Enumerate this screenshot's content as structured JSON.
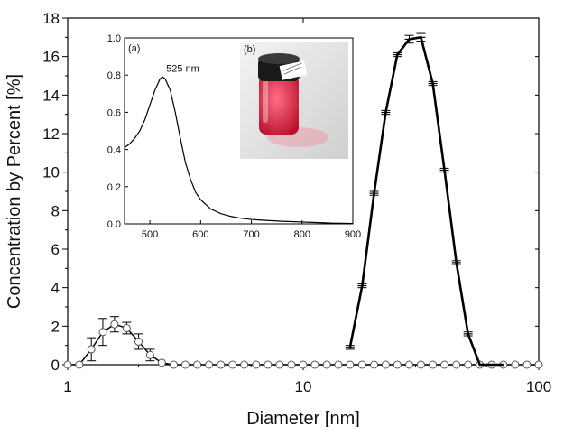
{
  "chart_data": [
    {
      "type": "scatter",
      "title": "",
      "xlabel": "Diameter [nm]",
      "ylabel": "Concentration by Percent [%]",
      "x_scale": "log",
      "xlim": [
        1,
        100
      ],
      "ylim": [
        0,
        18
      ],
      "x_ticks": [
        1,
        10,
        100
      ],
      "x_tick_labels": [
        "1",
        "10",
        "100"
      ],
      "y_ticks": [
        0,
        2,
        4,
        6,
        8,
        10,
        12,
        14,
        16,
        18
      ],
      "y_tick_labels": [
        "0",
        "2",
        "4",
        "6",
        "8",
        "10",
        "12",
        "14",
        "16",
        "18"
      ],
      "grid": false,
      "series": [
        {
          "marker": "open-circle",
          "color": "#000000",
          "x": [
            1.0,
            1.12,
            1.26,
            1.41,
            1.58,
            1.78,
            2.0,
            2.24,
            2.51,
            2.82,
            3.16,
            3.55,
            3.98,
            4.47,
            5.01,
            5.62,
            6.31,
            7.08,
            7.94,
            8.91,
            10.0,
            11.2,
            12.6,
            14.1,
            15.8,
            17.8,
            20.0,
            22.4,
            25.1,
            28.2,
            31.6,
            35.5,
            39.8,
            44.7,
            50.1,
            56.2,
            63.1,
            70.8,
            79.4,
            89.1,
            100.0
          ],
          "y": [
            0,
            0,
            0.8,
            1.7,
            2.1,
            1.9,
            1.2,
            0.5,
            0.1,
            0,
            0,
            0,
            0,
            0,
            0,
            0,
            0,
            0,
            0,
            0,
            0,
            0,
            0,
            0,
            0,
            0,
            0,
            0,
            0,
            0,
            0,
            0,
            0,
            0,
            0,
            0,
            0,
            0,
            0,
            0,
            0
          ]
        },
        {
          "marker": "bar-with-error",
          "color": "#000000",
          "x": [
            15.8,
            17.8,
            20.0,
            22.4,
            25.1,
            28.2,
            31.6,
            35.5,
            39.8,
            44.7,
            50.1,
            56.2,
            63.1,
            70.8
          ],
          "y": [
            0.9,
            4.1,
            8.9,
            13.1,
            16.1,
            16.9,
            17.0,
            14.6,
            10.1,
            5.3,
            1.6,
            0,
            0,
            0
          ]
        }
      ],
      "error_bars": [
        {
          "x": 1.26,
          "y": 0.8,
          "err": 0.6
        },
        {
          "x": 1.41,
          "y": 1.7,
          "err": 0.7
        },
        {
          "x": 1.58,
          "y": 2.1,
          "err": 0.4
        },
        {
          "x": 1.78,
          "y": 1.9,
          "err": 0.3
        },
        {
          "x": 2.0,
          "y": 1.2,
          "err": 0.4
        },
        {
          "x": 2.24,
          "y": 0.5,
          "err": 0.3
        },
        {
          "x": 15.8,
          "y": 0.9,
          "err": 0.1
        },
        {
          "x": 17.8,
          "y": 4.1,
          "err": 0.1
        },
        {
          "x": 20.0,
          "y": 8.9,
          "err": 0.1
        },
        {
          "x": 22.4,
          "y": 13.1,
          "err": 0.1
        },
        {
          "x": 25.1,
          "y": 16.1,
          "err": 0.1
        },
        {
          "x": 28.2,
          "y": 16.9,
          "err": 0.2
        },
        {
          "x": 31.6,
          "y": 17.0,
          "err": 0.2
        },
        {
          "x": 35.5,
          "y": 14.6,
          "err": 0.1
        },
        {
          "x": 39.8,
          "y": 10.1,
          "err": 0.1
        },
        {
          "x": 44.7,
          "y": 5.3,
          "err": 0.1
        },
        {
          "x": 50.1,
          "y": 1.6,
          "err": 0.1
        }
      ]
    },
    {
      "type": "line",
      "title": "",
      "panel_label": "(a)",
      "xlabel": "",
      "ylabel": "",
      "xlim": [
        450,
        900
      ],
      "ylim": [
        0,
        1.0
      ],
      "x_ticks": [
        500,
        600,
        700,
        800,
        900
      ],
      "x_tick_labels": [
        "500",
        "600",
        "700",
        "800",
        "900"
      ],
      "y_ticks": [
        0.0,
        0.2,
        0.4,
        0.6,
        0.8,
        1.0
      ],
      "y_tick_labels": [
        "0.0",
        "0.2",
        "0.4",
        "0.6",
        "0.8",
        "1.0"
      ],
      "annotation": "525 nm",
      "annotation_x": 525,
      "annotation_y": 0.79,
      "series": [
        {
          "color": "#000000",
          "x": [
            450,
            460,
            470,
            480,
            490,
            500,
            510,
            520,
            525,
            530,
            540,
            550,
            560,
            570,
            580,
            590,
            600,
            620,
            640,
            660,
            680,
            700,
            720,
            740,
            760,
            780,
            800,
            820,
            840,
            860,
            880,
            900
          ],
          "y": [
            0.41,
            0.43,
            0.46,
            0.5,
            0.56,
            0.64,
            0.72,
            0.78,
            0.79,
            0.78,
            0.72,
            0.6,
            0.46,
            0.33,
            0.24,
            0.17,
            0.13,
            0.08,
            0.055,
            0.04,
            0.03,
            0.024,
            0.02,
            0.017,
            0.014,
            0.012,
            0.01,
            0.008,
            0.006,
            0.004,
            0.003,
            0.002
          ]
        }
      ]
    }
  ],
  "inset_photo": {
    "panel_label": "(b)",
    "colors": {
      "liquid": "#e0203c",
      "cap": "#1a1a1a",
      "background": "#e4e4e4"
    }
  }
}
